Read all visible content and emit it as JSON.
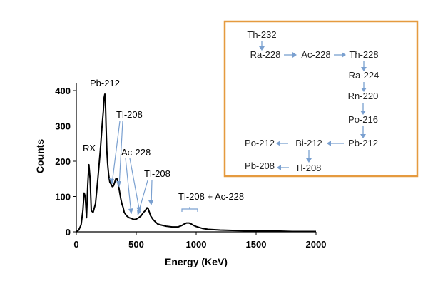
{
  "chart_data": {
    "type": "line",
    "xlabel": "Energy (KeV)",
    "ylabel": "Counts",
    "xlim": [
      0,
      2000
    ],
    "ylim": [
      0,
      400
    ],
    "x_ticks": [
      "0",
      "500",
      "1000",
      "1500",
      "2000"
    ],
    "y_ticks": [
      "0",
      "100",
      "200",
      "300",
      "400"
    ],
    "grid": false,
    "line_color": "#000000",
    "series": [
      {
        "x": [
          0,
          20,
          40,
          55,
          65,
          75,
          85,
          95,
          105,
          115,
          125,
          140,
          160,
          180,
          200,
          215,
          225,
          232,
          238,
          243,
          248,
          255,
          262,
          270,
          280,
          290,
          300,
          310,
          320,
          330,
          340,
          350,
          360,
          370,
          380,
          390,
          400,
          420,
          440,
          460,
          480,
          500,
          520,
          540,
          560,
          575,
          590,
          600,
          610,
          620,
          640,
          660,
          680,
          700,
          750,
          800,
          850,
          880,
          900,
          920,
          940,
          960,
          980,
          1000,
          1050,
          1100,
          1200,
          1300,
          1400,
          1500,
          1600,
          1700,
          1800,
          1900,
          2000
        ],
        "y": [
          0,
          5,
          20,
          60,
          110,
          100,
          40,
          130,
          190,
          150,
          60,
          55,
          80,
          150,
          230,
          300,
          340,
          380,
          390,
          370,
          300,
          230,
          190,
          160,
          140,
          135,
          128,
          130,
          140,
          150,
          150,
          135,
          115,
          95,
          80,
          70,
          55,
          45,
          40,
          38,
          35,
          36,
          40,
          45,
          55,
          60,
          68,
          65,
          55,
          45,
          35,
          28,
          22,
          20,
          16,
          14,
          14,
          18,
          22,
          25,
          25,
          22,
          18,
          15,
          10,
          7,
          5,
          4,
          3,
          3,
          2,
          2,
          1,
          1,
          1
        ]
      }
    ],
    "annotations": [
      {
        "text": "Pb-212"
      },
      {
        "text": "RX"
      },
      {
        "text": "Tl-208"
      },
      {
        "text": "Ac-228"
      },
      {
        "text": "Tl-208"
      },
      {
        "text": "Tl-208 + Ac-228"
      }
    ]
  },
  "decay_chain": {
    "border_color": "#e59a3f",
    "arrow_color": "#7aa0d0",
    "nodes": {
      "th232": "Th-232",
      "ra228": "Ra-228",
      "ac228": "Ac-228",
      "th228": "Th-228",
      "ra224": "Ra-224",
      "rn220": "Rn-220",
      "po216": "Po-216",
      "pb212": "Pb-212",
      "bi212": "Bi-212",
      "po212": "Po-212",
      "tl208": "Tl-208",
      "pb208": "Pb-208"
    }
  }
}
